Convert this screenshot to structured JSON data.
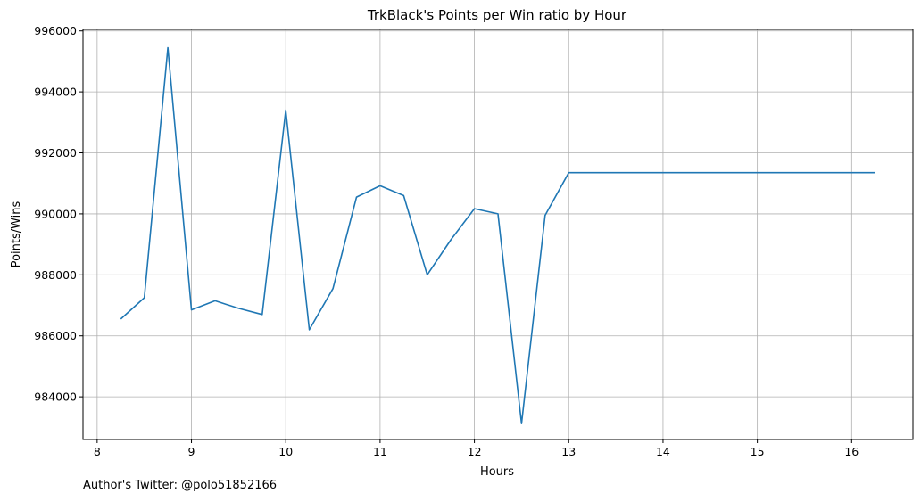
{
  "footer": "Author's Twitter: @polo51852166",
  "chart_data": {
    "type": "line",
    "title": "TrkBlack's Points per Win ratio by Hour",
    "xlabel": "Hours",
    "ylabel": "Points/Wins",
    "xlim": [
      7.85,
      16.65
    ],
    "ylim": [
      982600,
      996050
    ],
    "xticks": [
      8,
      9,
      10,
      11,
      12,
      13,
      14,
      15,
      16
    ],
    "yticks": [
      984000,
      986000,
      988000,
      990000,
      992000,
      994000,
      996000
    ],
    "ytick_labels": [
      "984000",
      "986000",
      "988000",
      "990000",
      "992000",
      "994000",
      "996000"
    ],
    "grid": true,
    "line_color": "#1f77b4",
    "series": [
      {
        "x": [
          8.25,
          8.5,
          8.75,
          9.0,
          9.25,
          9.5,
          9.75,
          10.0,
          10.25,
          10.5,
          10.75,
          11.0,
          11.25,
          11.5,
          11.75,
          12.0,
          12.25,
          12.5,
          12.75,
          13.0,
          13.25,
          13.5,
          13.75,
          14.0,
          14.25,
          14.5,
          14.75,
          15.0,
          15.25,
          15.5,
          15.75,
          16.0,
          16.25
        ],
        "values": [
          986550,
          987250,
          995450,
          986850,
          987150,
          986900,
          986700,
          993400,
          986200,
          987550,
          990550,
          990920,
          990600,
          988000,
          989150,
          990170,
          990000,
          983120,
          989950,
          991350,
          991350,
          991350,
          991350,
          991350,
          991350,
          991350,
          991350,
          991350,
          991350,
          991350,
          991350,
          991350,
          991350
        ]
      }
    ]
  }
}
